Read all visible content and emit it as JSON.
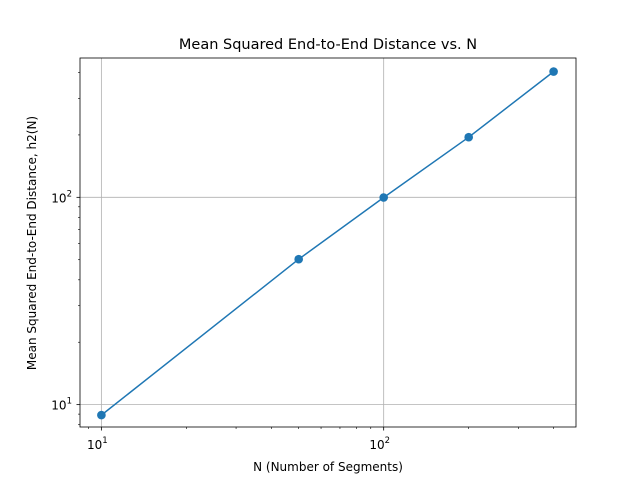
{
  "chart_data": {
    "type": "line",
    "title": "Mean Squared End-to-End Distance vs. N",
    "xlabel": "N (Number of Segments)",
    "ylabel": "Mean Squared End-to-End Distance, h2(N)",
    "xscale": "log",
    "yscale": "log",
    "xlim": [
      8.4,
      480
    ],
    "ylim": [
      7.8,
      470
    ],
    "grid": true,
    "x": [
      10,
      50,
      100,
      200,
      400
    ],
    "series": [
      {
        "values": [
          8.9,
          50.3,
          99.8,
          195,
          404
        ]
      }
    ],
    "x_ticks": [
      {
        "value": 10,
        "base": "10",
        "exp": "1"
      },
      {
        "value": 100,
        "base": "10",
        "exp": "2"
      }
    ],
    "y_ticks": [
      {
        "value": 10,
        "base": "10",
        "exp": "1"
      },
      {
        "value": 100,
        "base": "10",
        "exp": "2"
      }
    ],
    "colors": {
      "series": "#1f77b4",
      "grid": "#b0b0b0",
      "axes": "#000000"
    }
  }
}
